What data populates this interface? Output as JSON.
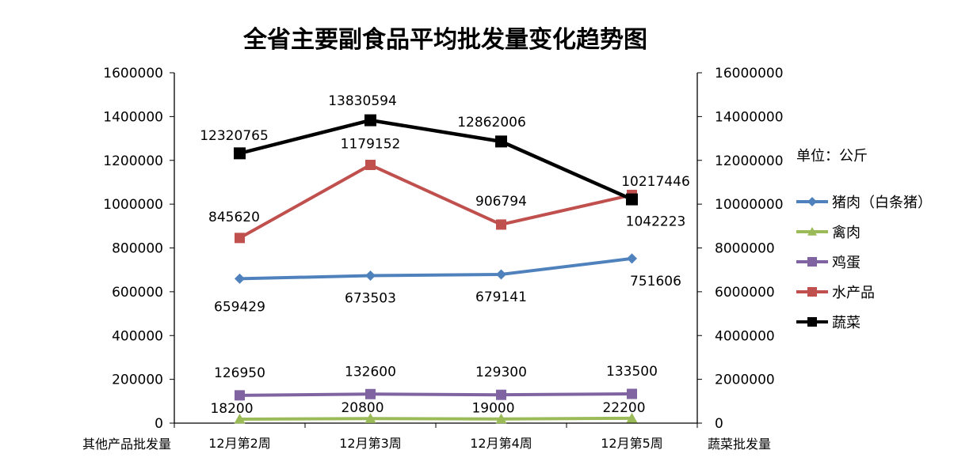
{
  "chart_data": {
    "type": "line",
    "title": "全省主要副食品平均批发量变化趋势图",
    "unit_note": "单位：公斤",
    "ylabel_left": "其他产品批发量",
    "ylabel_right": "蔬菜批发量",
    "categories": [
      "12月第2周",
      "12月第3周",
      "12月第4周",
      "12月第5周"
    ],
    "ylim_left": [
      0,
      1600000
    ],
    "ylim_right": [
      0,
      16000000
    ],
    "yticks_left": [
      "0",
      "200000",
      "400000",
      "600000",
      "800000",
      "1000000",
      "1200000",
      "1400000",
      "1600000"
    ],
    "yticks_right": [
      "0",
      "2000000",
      "4000000",
      "6000000",
      "8000000",
      "10000000",
      "12000000",
      "14000000",
      "16000000"
    ],
    "grid": false,
    "legend_position": "right",
    "series": [
      {
        "name": "猪肉（白条猪）",
        "axis": "left",
        "color": "#4F81BD",
        "marker": "diamond",
        "values": [
          659429,
          673503,
          679141,
          751606
        ],
        "labels": [
          "659429",
          "673503",
          "679141",
          "751606"
        ]
      },
      {
        "name": "禽肉",
        "axis": "left",
        "color": "#9BBB59",
        "marker": "triangle",
        "values": [
          18200,
          20800,
          19000,
          22200
        ],
        "labels": [
          "18200",
          "20800",
          "19000",
          "22200"
        ]
      },
      {
        "name": "鸡蛋",
        "axis": "left",
        "color": "#8064A2",
        "marker": "square",
        "values": [
          126950,
          132600,
          129300,
          133500
        ],
        "labels": [
          "126950",
          "132600",
          "129300",
          "133500"
        ]
      },
      {
        "name": "水产品",
        "axis": "left",
        "color": "#C0504D",
        "marker": "square",
        "values": [
          845620,
          1179152,
          906794,
          1042223
        ],
        "labels": [
          "845620",
          "1179152",
          "906794",
          "1042223"
        ]
      },
      {
        "name": "蔬菜",
        "axis": "right",
        "color": "#000000",
        "marker": "square",
        "values": [
          12320765,
          13830594,
          12862006,
          10217446
        ],
        "labels": [
          "12320765",
          "13830594",
          "12862006",
          "10217446"
        ]
      }
    ]
  }
}
